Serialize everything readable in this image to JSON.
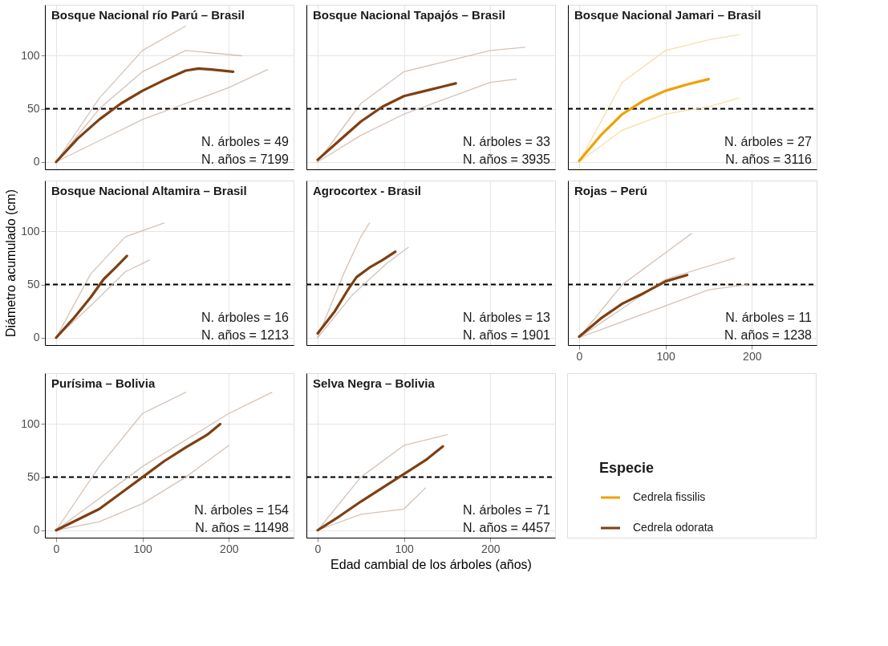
{
  "chart_data": [
    {
      "type": "line",
      "title": "Bosque Nacional río Parú – Brasil",
      "xlim": [
        -13,
        275
      ],
      "ylim": [
        -7,
        148
      ],
      "xticks": [
        0,
        100,
        200
      ],
      "yticks": [
        0,
        50,
        100
      ],
      "grid": true,
      "tick_labels": "y",
      "ref_lines": [
        {
          "axis": "y",
          "value": 50,
          "color": "#000000",
          "line_style": "dashed"
        }
      ],
      "annotations": [
        "N. árboles = 49",
        "N. años = 7199"
      ],
      "series": [
        {
          "color": "#cdb8aa",
          "x": [
            0,
            50,
            100,
            150
          ],
          "values": [
            0,
            60,
            105,
            128
          ]
        },
        {
          "color": "#cdb8aa",
          "x": [
            0,
            50,
            100,
            150,
            215
          ],
          "values": [
            0,
            50,
            85,
            105,
            100
          ]
        },
        {
          "color": "#cdb8aa",
          "x": [
            0,
            50,
            100,
            150,
            200,
            245
          ],
          "values": [
            0,
            20,
            40,
            55,
            70,
            87
          ]
        },
        {
          "name": "Cedrela odorata",
          "color": "#7f3f12",
          "x": [
            0,
            25,
            50,
            75,
            100,
            125,
            150,
            165,
            180,
            205
          ],
          "values": [
            0,
            22,
            40,
            55,
            67,
            77,
            86,
            88,
            87,
            85
          ]
        }
      ]
    },
    {
      "type": "line",
      "title": "Bosque Nacional Tapajós – Brasil",
      "xlim": [
        -13,
        275
      ],
      "ylim": [
        -7,
        148
      ],
      "xticks": [
        0,
        100,
        200
      ],
      "yticks": [
        0,
        50,
        100
      ],
      "grid": true,
      "tick_labels": false,
      "ref_lines": [
        {
          "axis": "y",
          "value": 50,
          "color": "#000000",
          "line_style": "dashed"
        }
      ],
      "annotations": [
        "N. árboles = 33",
        "N. años = 3935"
      ],
      "series": [
        {
          "color": "#cdb8aa",
          "x": [
            0,
            50,
            100,
            150,
            200,
            240
          ],
          "values": [
            0,
            55,
            85,
            95,
            105,
            108
          ]
        },
        {
          "color": "#cdb8aa",
          "x": [
            0,
            50,
            100,
            150,
            200,
            230
          ],
          "values": [
            0,
            25,
            45,
            60,
            75,
            78
          ]
        },
        {
          "name": "Cedrela odorata",
          "color": "#7f3f12",
          "x": [
            0,
            25,
            50,
            75,
            100,
            125,
            150,
            160
          ],
          "values": [
            2,
            20,
            38,
            52,
            62,
            67,
            72,
            74
          ]
        }
      ]
    },
    {
      "type": "line",
      "title": "Bosque Nacional Jamari – Brasil",
      "xlim": [
        -13,
        275
      ],
      "ylim": [
        -7,
        148
      ],
      "xticks": [
        0,
        100,
        200
      ],
      "yticks": [
        0,
        50,
        100
      ],
      "grid": true,
      "tick_labels": false,
      "ref_lines": [
        {
          "axis": "y",
          "value": 50,
          "color": "#000000",
          "line_style": "dashed"
        }
      ],
      "annotations": [
        "N. árboles = 27",
        "N. años = 3116"
      ],
      "series": [
        {
          "color": "#f7d99a",
          "x": [
            0,
            50,
            100,
            150,
            185
          ],
          "values": [
            0,
            75,
            105,
            115,
            120
          ]
        },
        {
          "color": "#f7d99a",
          "x": [
            0,
            50,
            100,
            150,
            185
          ],
          "values": [
            0,
            30,
            45,
            52,
            60
          ]
        },
        {
          "name": "Cedrela fissilis",
          "color": "#f0a000",
          "x": [
            0,
            25,
            50,
            75,
            100,
            125,
            150
          ],
          "values": [
            1,
            25,
            45,
            58,
            67,
            73,
            78
          ]
        }
      ]
    },
    {
      "type": "line",
      "title": "Bosque Nacional Altamira – Brasil",
      "ylabel": "Diámetro acumulado (cm)",
      "xlim": [
        -13,
        275
      ],
      "ylim": [
        -7,
        148
      ],
      "xticks": [
        0,
        100,
        200
      ],
      "yticks": [
        0,
        50,
        100
      ],
      "grid": true,
      "tick_labels": "y",
      "ref_lines": [
        {
          "axis": "y",
          "value": 50,
          "color": "#000000",
          "line_style": "dashed"
        }
      ],
      "annotations": [
        "N. árboles = 16",
        "N. años = 1213"
      ],
      "series": [
        {
          "color": "#cdb8aa",
          "x": [
            0,
            40,
            80,
            125
          ],
          "values": [
            0,
            60,
            95,
            108
          ]
        },
        {
          "color": "#cdb8aa",
          "x": [
            0,
            40,
            80,
            108
          ],
          "values": [
            0,
            30,
            62,
            73
          ]
        },
        {
          "name": "Cedrela odorata",
          "color": "#7f3f12",
          "x": [
            0,
            20,
            40,
            55,
            70,
            82
          ],
          "values": [
            0,
            18,
            38,
            55,
            67,
            77
          ]
        }
      ]
    },
    {
      "type": "line",
      "title": "Agrocortex - Brasil",
      "xlim": [
        -13,
        275
      ],
      "ylim": [
        -7,
        148
      ],
      "xticks": [
        0,
        100,
        200
      ],
      "yticks": [
        0,
        50,
        100
      ],
      "grid": true,
      "tick_labels": false,
      "ref_lines": [
        {
          "axis": "y",
          "value": 50,
          "color": "#000000",
          "line_style": "dashed"
        }
      ],
      "annotations": [
        "N. árboles = 13",
        "N. años = 1901"
      ],
      "series": [
        {
          "color": "#cdb8aa",
          "x": [
            0,
            30,
            50,
            60
          ],
          "values": [
            0,
            60,
            95,
            108
          ]
        },
        {
          "color": "#cdb8aa",
          "x": [
            0,
            40,
            80,
            105
          ],
          "values": [
            0,
            40,
            70,
            85
          ]
        },
        {
          "name": "Cedrela odorata",
          "color": "#7f3f12",
          "x": [
            0,
            20,
            35,
            45,
            60,
            75,
            90
          ],
          "values": [
            4,
            25,
            45,
            57,
            66,
            73,
            81
          ]
        }
      ]
    },
    {
      "type": "line",
      "title": "Rojas – Perú",
      "xlim": [
        -13,
        275
      ],
      "ylim": [
        -7,
        148
      ],
      "xticks": [
        0,
        100,
        200
      ],
      "yticks": [
        0,
        50,
        100
      ],
      "grid": true,
      "tick_labels": "x",
      "ref_lines": [
        {
          "axis": "y",
          "value": 50,
          "color": "#000000",
          "line_style": "dashed"
        }
      ],
      "annotations": [
        "N. árboles = 11",
        "N. años = 1238"
      ],
      "series": [
        {
          "color": "#cdb8aa",
          "x": [
            0,
            50,
            100,
            130
          ],
          "values": [
            0,
            50,
            80,
            98
          ]
        },
        {
          "color": "#cdb8aa",
          "x": [
            0,
            100,
            180
          ],
          "values": [
            0,
            55,
            75
          ]
        },
        {
          "color": "#cdb8aa",
          "x": [
            0,
            50,
            100,
            150,
            195
          ],
          "values": [
            0,
            15,
            30,
            45,
            50
          ]
        },
        {
          "name": "Cedrela odorata",
          "color": "#7f3f12",
          "x": [
            0,
            25,
            50,
            75,
            100,
            125
          ],
          "values": [
            1,
            18,
            32,
            42,
            53,
            59
          ]
        }
      ]
    },
    {
      "type": "line",
      "title": "Purísima – Bolivia",
      "xlim": [
        -13,
        275
      ],
      "ylim": [
        -7,
        148
      ],
      "xticks": [
        0,
        100,
        200
      ],
      "yticks": [
        0,
        50,
        100
      ],
      "grid": true,
      "ref_lines": [
        {
          "axis": "y",
          "value": 50,
          "color": "#000000",
          "line_style": "dashed"
        }
      ],
      "annotations": [
        "N. árboles = 154",
        "N. años = 11498"
      ],
      "series": [
        {
          "color": "#cdb8aa",
          "x": [
            0,
            50,
            100,
            150
          ],
          "values": [
            0,
            60,
            110,
            130
          ]
        },
        {
          "color": "#cdb8aa",
          "x": [
            0,
            100,
            200,
            250
          ],
          "values": [
            0,
            60,
            110,
            130
          ]
        },
        {
          "color": "#cdb8aa",
          "x": [
            0,
            50,
            100,
            150,
            200
          ],
          "values": [
            0,
            8,
            25,
            50,
            80
          ]
        },
        {
          "name": "Cedrela odorata",
          "color": "#7f3f12",
          "x": [
            0,
            25,
            50,
            75,
            100,
            125,
            150,
            175,
            190
          ],
          "values": [
            0,
            10,
            20,
            35,
            50,
            65,
            78,
            90,
            100
          ]
        }
      ]
    },
    {
      "type": "line",
      "title": "Selva Negra – Bolivia",
      "xlabel": "Edad cambial de los árboles (años)",
      "xlim": [
        -13,
        275
      ],
      "ylim": [
        -7,
        148
      ],
      "xticks": [
        0,
        100,
        200
      ],
      "yticks": [
        0,
        50,
        100
      ],
      "grid": true,
      "tick_labels": "x",
      "legend": "bottom right",
      "legend_title": "Especie",
      "ref_lines": [
        {
          "axis": "y",
          "value": 50,
          "color": "#000000",
          "line_style": "dashed"
        }
      ],
      "annotations": [
        "N. árboles = 71",
        "N. años = 4457"
      ],
      "series": [
        {
          "color": "#cdb8aa",
          "x": [
            0,
            50,
            100,
            150
          ],
          "values": [
            0,
            50,
            80,
            90
          ]
        },
        {
          "color": "#cdb8aa",
          "x": [
            0,
            50,
            100,
            125
          ],
          "values": [
            0,
            15,
            20,
            40
          ]
        },
        {
          "name": "Cedrela odorata",
          "color": "#7f3f12",
          "x": [
            0,
            25,
            50,
            75,
            100,
            125,
            145
          ],
          "values": [
            0,
            13,
            27,
            40,
            53,
            66,
            79
          ]
        }
      ]
    }
  ]
}
